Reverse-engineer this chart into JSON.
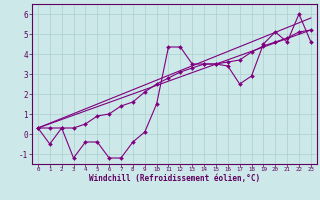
{
  "xlabel": "Windchill (Refroidissement éolien,°C)",
  "bg_color": "#cce8e8",
  "line_color": "#800080",
  "grid_color": "#aacfcf",
  "xlim": [
    -0.5,
    23.5
  ],
  "ylim": [
    -1.5,
    6.5
  ],
  "xticks": [
    0,
    1,
    2,
    3,
    4,
    5,
    6,
    7,
    8,
    9,
    10,
    11,
    12,
    13,
    14,
    15,
    16,
    17,
    18,
    19,
    20,
    21,
    22,
    23
  ],
  "yticks": [
    -1,
    0,
    1,
    2,
    3,
    4,
    5,
    6
  ],
  "line1_x": [
    0,
    1,
    2,
    3,
    4,
    5,
    6,
    7,
    8,
    9,
    10,
    11,
    12,
    13,
    14,
    15,
    16,
    17,
    18,
    19,
    20,
    21,
    22,
    23
  ],
  "line1_y": [
    0.3,
    -0.5,
    0.3,
    -1.2,
    -0.4,
    -0.4,
    -1.2,
    -1.2,
    -0.4,
    0.1,
    1.5,
    4.35,
    4.35,
    3.5,
    3.5,
    3.5,
    3.4,
    2.5,
    2.9,
    4.5,
    5.1,
    4.6,
    6.0,
    4.6
  ],
  "line2_x": [
    0,
    1,
    2,
    3,
    4,
    5,
    6,
    7,
    8,
    9,
    10,
    11,
    12,
    13,
    14,
    15,
    16,
    17,
    18,
    19,
    20,
    21,
    22,
    23
  ],
  "line2_y": [
    0.3,
    0.3,
    0.3,
    0.3,
    0.5,
    0.9,
    1.0,
    1.4,
    1.6,
    2.1,
    2.5,
    2.8,
    3.1,
    3.3,
    3.5,
    3.5,
    3.6,
    3.7,
    4.1,
    4.4,
    4.6,
    4.8,
    5.1,
    5.2
  ],
  "line3_x": [
    0,
    23
  ],
  "line3_y": [
    0.3,
    5.2
  ],
  "line4_x": [
    0,
    23
  ],
  "line4_y": [
    0.3,
    5.8
  ]
}
